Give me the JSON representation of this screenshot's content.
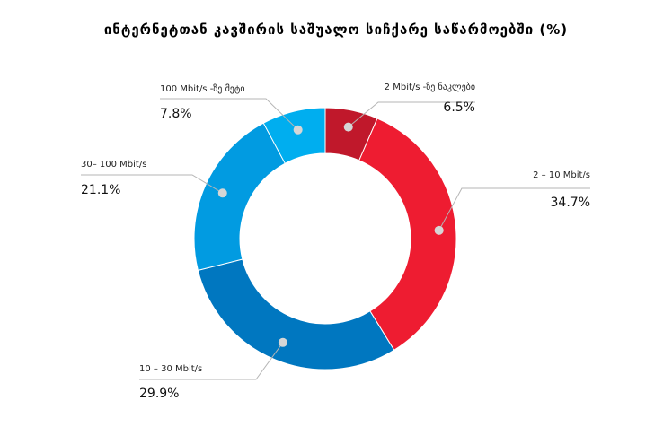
{
  "chart_data": {
    "type": "pie",
    "title": "ინტერნეტთან კავშირის საშუალო სიჩქარე საწარმოებში (%)",
    "donut": true,
    "slices": [
      {
        "label": "2 Mbit/s -ზე ნაკლები",
        "value": 6.5,
        "value_text": "6.5%",
        "color": "#c0182b"
      },
      {
        "label": "2 – 10 Mbit/s",
        "value": 34.7,
        "value_text": "34.7%",
        "color": "#ee1c31"
      },
      {
        "label": "10 – 30 Mbit/s",
        "value": 29.9,
        "value_text": "29.9%",
        "color": "#0077c0"
      },
      {
        "label": "30– 100 Mbit/s",
        "value": 21.1,
        "value_text": "21.1%",
        "color": "#019be1"
      },
      {
        "label": "100 Mbit/s -ზე მეტი",
        "value": 7.8,
        "value_text": "7.8%",
        "color": "#00aeef"
      }
    ]
  }
}
